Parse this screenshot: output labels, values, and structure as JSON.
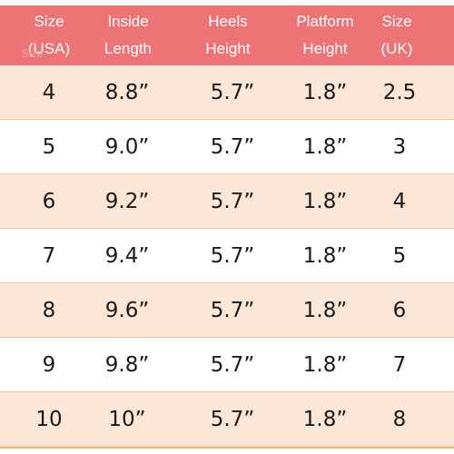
{
  "header": {
    "size_usa": [
      "Size",
      "(USA)"
    ],
    "inside_length": [
      "Inside",
      "Length"
    ],
    "heels_height": [
      "Heels",
      "Height"
    ],
    "platform_height": [
      "Platform",
      "Height"
    ],
    "size_uk": [
      "Size",
      "(UK)"
    ],
    "ghost_text": "Size"
  },
  "colors": {
    "header_bg": "#ee7377",
    "row_shaded": "#fce6d6",
    "row_plain": "#ffffff",
    "row_border": "#f4c9a6"
  },
  "rows": [
    {
      "usa": "4",
      "length": "8.8”",
      "heel": "5.7”",
      "platform": "1.8”",
      "uk": "2.5"
    },
    {
      "usa": "5",
      "length": "9.0”",
      "heel": "5.7”",
      "platform": "1.8”",
      "uk": "3"
    },
    {
      "usa": "6",
      "length": "9.2”",
      "heel": "5.7”",
      "platform": "1.8”",
      "uk": "4"
    },
    {
      "usa": "7",
      "length": "9.4”",
      "heel": "5.7”",
      "platform": "1.8”",
      "uk": "5"
    },
    {
      "usa": "8",
      "length": "9.6”",
      "heel": "5.7”",
      "platform": "1.8”",
      "uk": "6"
    },
    {
      "usa": "9",
      "length": "9.8”",
      "heel": "5.7”",
      "platform": "1.8”",
      "uk": "7"
    },
    {
      "usa": "10",
      "length": "10”",
      "heel": "5.7”",
      "platform": "1.8”",
      "uk": "8"
    }
  ]
}
